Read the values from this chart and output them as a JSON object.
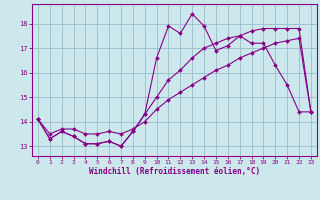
{
  "title": "",
  "xlabel": "Windchill (Refroidissement éolien,°C)",
  "ylabel": "",
  "background_color": "#cce8ec",
  "line_color": "#880088",
  "grid_color": "#99bbcc",
  "xlim": [
    -0.5,
    23.5
  ],
  "ylim": [
    12.6,
    18.8
  ],
  "xticks": [
    0,
    1,
    2,
    3,
    4,
    5,
    6,
    7,
    8,
    9,
    10,
    11,
    12,
    13,
    14,
    15,
    16,
    17,
    18,
    19,
    20,
    21,
    22,
    23
  ],
  "yticks": [
    13,
    14,
    15,
    16,
    17,
    18
  ],
  "line1_x": [
    0,
    1,
    2,
    3,
    4,
    5,
    6,
    7,
    8,
    9,
    10,
    11,
    12,
    13,
    14,
    15,
    16,
    17,
    18,
    19,
    20,
    21,
    22,
    23
  ],
  "line1_y": [
    14.1,
    13.3,
    13.6,
    13.4,
    13.1,
    13.1,
    13.2,
    13.0,
    13.6,
    14.3,
    16.6,
    17.9,
    17.6,
    18.4,
    17.9,
    16.9,
    17.1,
    17.5,
    17.2,
    17.2,
    16.3,
    15.5,
    14.4,
    14.4
  ],
  "line2_x": [
    0,
    1,
    2,
    3,
    4,
    5,
    6,
    7,
    8,
    9,
    10,
    11,
    12,
    13,
    14,
    15,
    16,
    17,
    18,
    19,
    20,
    21,
    22,
    23
  ],
  "line2_y": [
    14.1,
    13.3,
    13.6,
    13.4,
    13.1,
    13.1,
    13.2,
    13.0,
    13.6,
    14.3,
    15.0,
    15.7,
    16.1,
    16.6,
    17.0,
    17.2,
    17.4,
    17.5,
    17.7,
    17.8,
    17.8,
    17.8,
    17.8,
    14.4
  ],
  "line3_x": [
    0,
    1,
    2,
    3,
    4,
    5,
    6,
    7,
    8,
    9,
    10,
    11,
    12,
    13,
    14,
    15,
    16,
    17,
    18,
    19,
    20,
    21,
    22,
    23
  ],
  "line3_y": [
    14.1,
    13.5,
    13.7,
    13.7,
    13.5,
    13.5,
    13.6,
    13.5,
    13.7,
    14.0,
    14.5,
    14.9,
    15.2,
    15.5,
    15.8,
    16.1,
    16.3,
    16.6,
    16.8,
    17.0,
    17.2,
    17.3,
    17.4,
    14.4
  ]
}
